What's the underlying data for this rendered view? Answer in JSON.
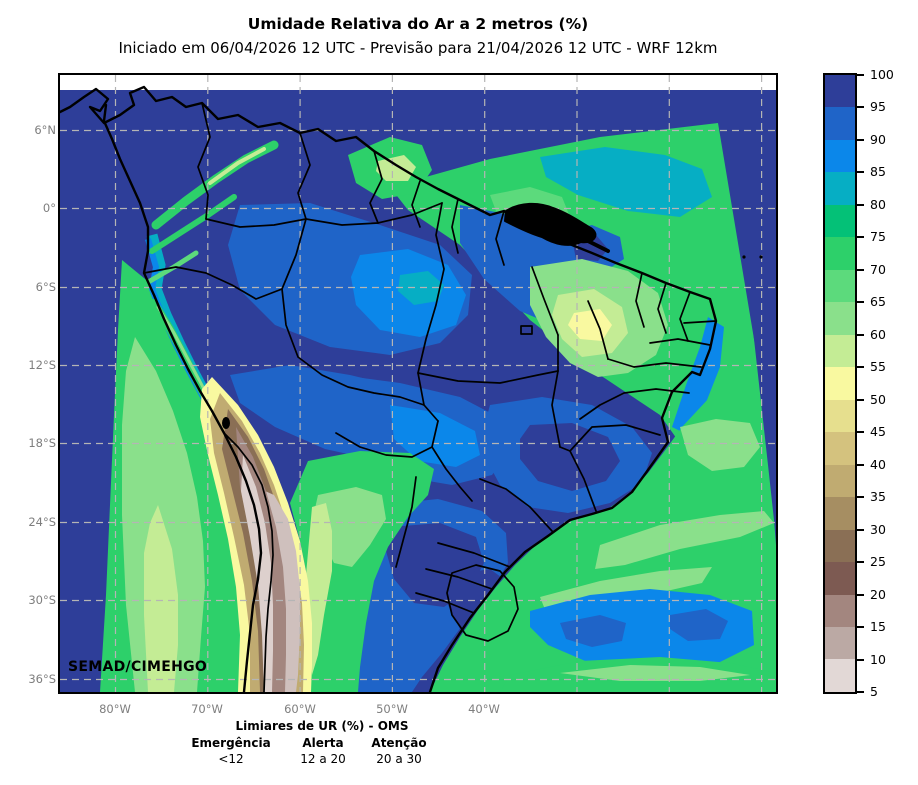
{
  "header": {
    "title": "Umidade Relativa do Ar a 2 metros (%)",
    "subtitle": "Iniciado em 06/04/2026 12 UTC - Previsão para 21/04/2026 12 UTC - WRF 12km"
  },
  "map": {
    "watermark": "SEMAD/CIMEHGO",
    "variable": "Umidade Relativa do Ar a 2 metros",
    "unit": "%",
    "lat_labels": [
      "6°N",
      "0°",
      "6°S",
      "12°S",
      "18°S",
      "24°S",
      "30°S",
      "36°S"
    ],
    "lon_labels": [
      "80°W",
      "70°W",
      "60°W",
      "50°W",
      "40°W"
    ]
  },
  "colorbar": {
    "ticks": [
      "100",
      "95",
      "90",
      "85",
      "80",
      "75",
      "70",
      "65",
      "60",
      "55",
      "50",
      "45",
      "40",
      "35",
      "30",
      "25",
      "20",
      "15",
      "10",
      "5"
    ],
    "segments": [
      {
        "range": "95-100",
        "color": "#2e3e99"
      },
      {
        "range": "90-95",
        "color": "#1f64c8"
      },
      {
        "range": "85-90",
        "color": "#0b87ea"
      },
      {
        "range": "80-85",
        "color": "#06aec4"
      },
      {
        "range": "75-80",
        "color": "#04c177"
      },
      {
        "range": "70-75",
        "color": "#2dd06a"
      },
      {
        "range": "65-70",
        "color": "#5cda7c"
      },
      {
        "range": "60-65",
        "color": "#8ae08b"
      },
      {
        "range": "55-60",
        "color": "#c4ec95"
      },
      {
        "range": "50-55",
        "color": "#f9f9a0"
      },
      {
        "range": "45-50",
        "color": "#e6df8e"
      },
      {
        "range": "40-45",
        "color": "#d4c27e"
      },
      {
        "range": "35-40",
        "color": "#c0ab71"
      },
      {
        "range": "30-35",
        "color": "#a68e62"
      },
      {
        "range": "25-30",
        "color": "#8a6f55"
      },
      {
        "range": "20-25",
        "color": "#7d5a52"
      },
      {
        "range": "15-20",
        "color": "#a3867f"
      },
      {
        "range": "10-15",
        "color": "#bba9a4"
      },
      {
        "range": "5-10",
        "color": "#e2d8d6"
      }
    ]
  },
  "legend": {
    "title": "Limiares de UR (%) - OMS",
    "items": [
      {
        "label": "Emergência",
        "value": "<12"
      },
      {
        "label": "Alerta",
        "value": "12 a 20"
      },
      {
        "label": "Atenção",
        "value": "20 a 30"
      }
    ]
  }
}
